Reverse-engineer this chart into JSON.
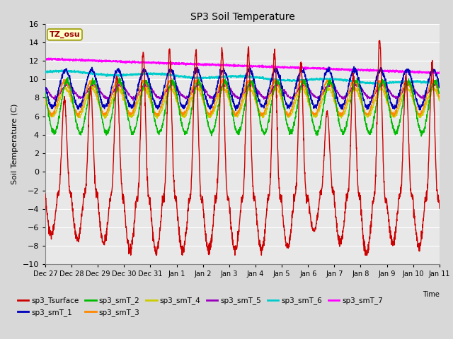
{
  "title": "SP3 Soil Temperature",
  "ylabel": "Soil Temperature (C)",
  "xlabel": "Time",
  "ylim": [
    -10,
    16
  ],
  "yticks": [
    -10,
    -8,
    -6,
    -4,
    -2,
    0,
    2,
    4,
    6,
    8,
    10,
    12,
    14,
    16
  ],
  "xtick_labels": [
    "Dec 27",
    "Dec 28",
    "Dec 29",
    "Dec 30",
    "Dec 31",
    "Jan 1",
    "Jan 2",
    "Jan 3",
    "Jan 4",
    "Jan 5",
    "Jan 6",
    "Jan 7",
    "Jan 8",
    "Jan 9",
    "Jan 10",
    "Jan 11"
  ],
  "fig_bg_color": "#d8d8d8",
  "plot_bg_color": "#e8e8e8",
  "grid_color": "#ffffff",
  "series_colors": {
    "sp3_Tsurface": "#cc0000",
    "sp3_smT_1": "#0000bb",
    "sp3_smT_2": "#00bb00",
    "sp3_smT_3": "#ff8800",
    "sp3_smT_4": "#cccc00",
    "sp3_smT_5": "#9900bb",
    "sp3_smT_6": "#00cccc",
    "sp3_smT_7": "#ff00ff"
  },
  "tz_label": "TZ_osu",
  "tz_color": "#990000",
  "tz_bg": "#ffffcc",
  "tz_border": "#999900"
}
